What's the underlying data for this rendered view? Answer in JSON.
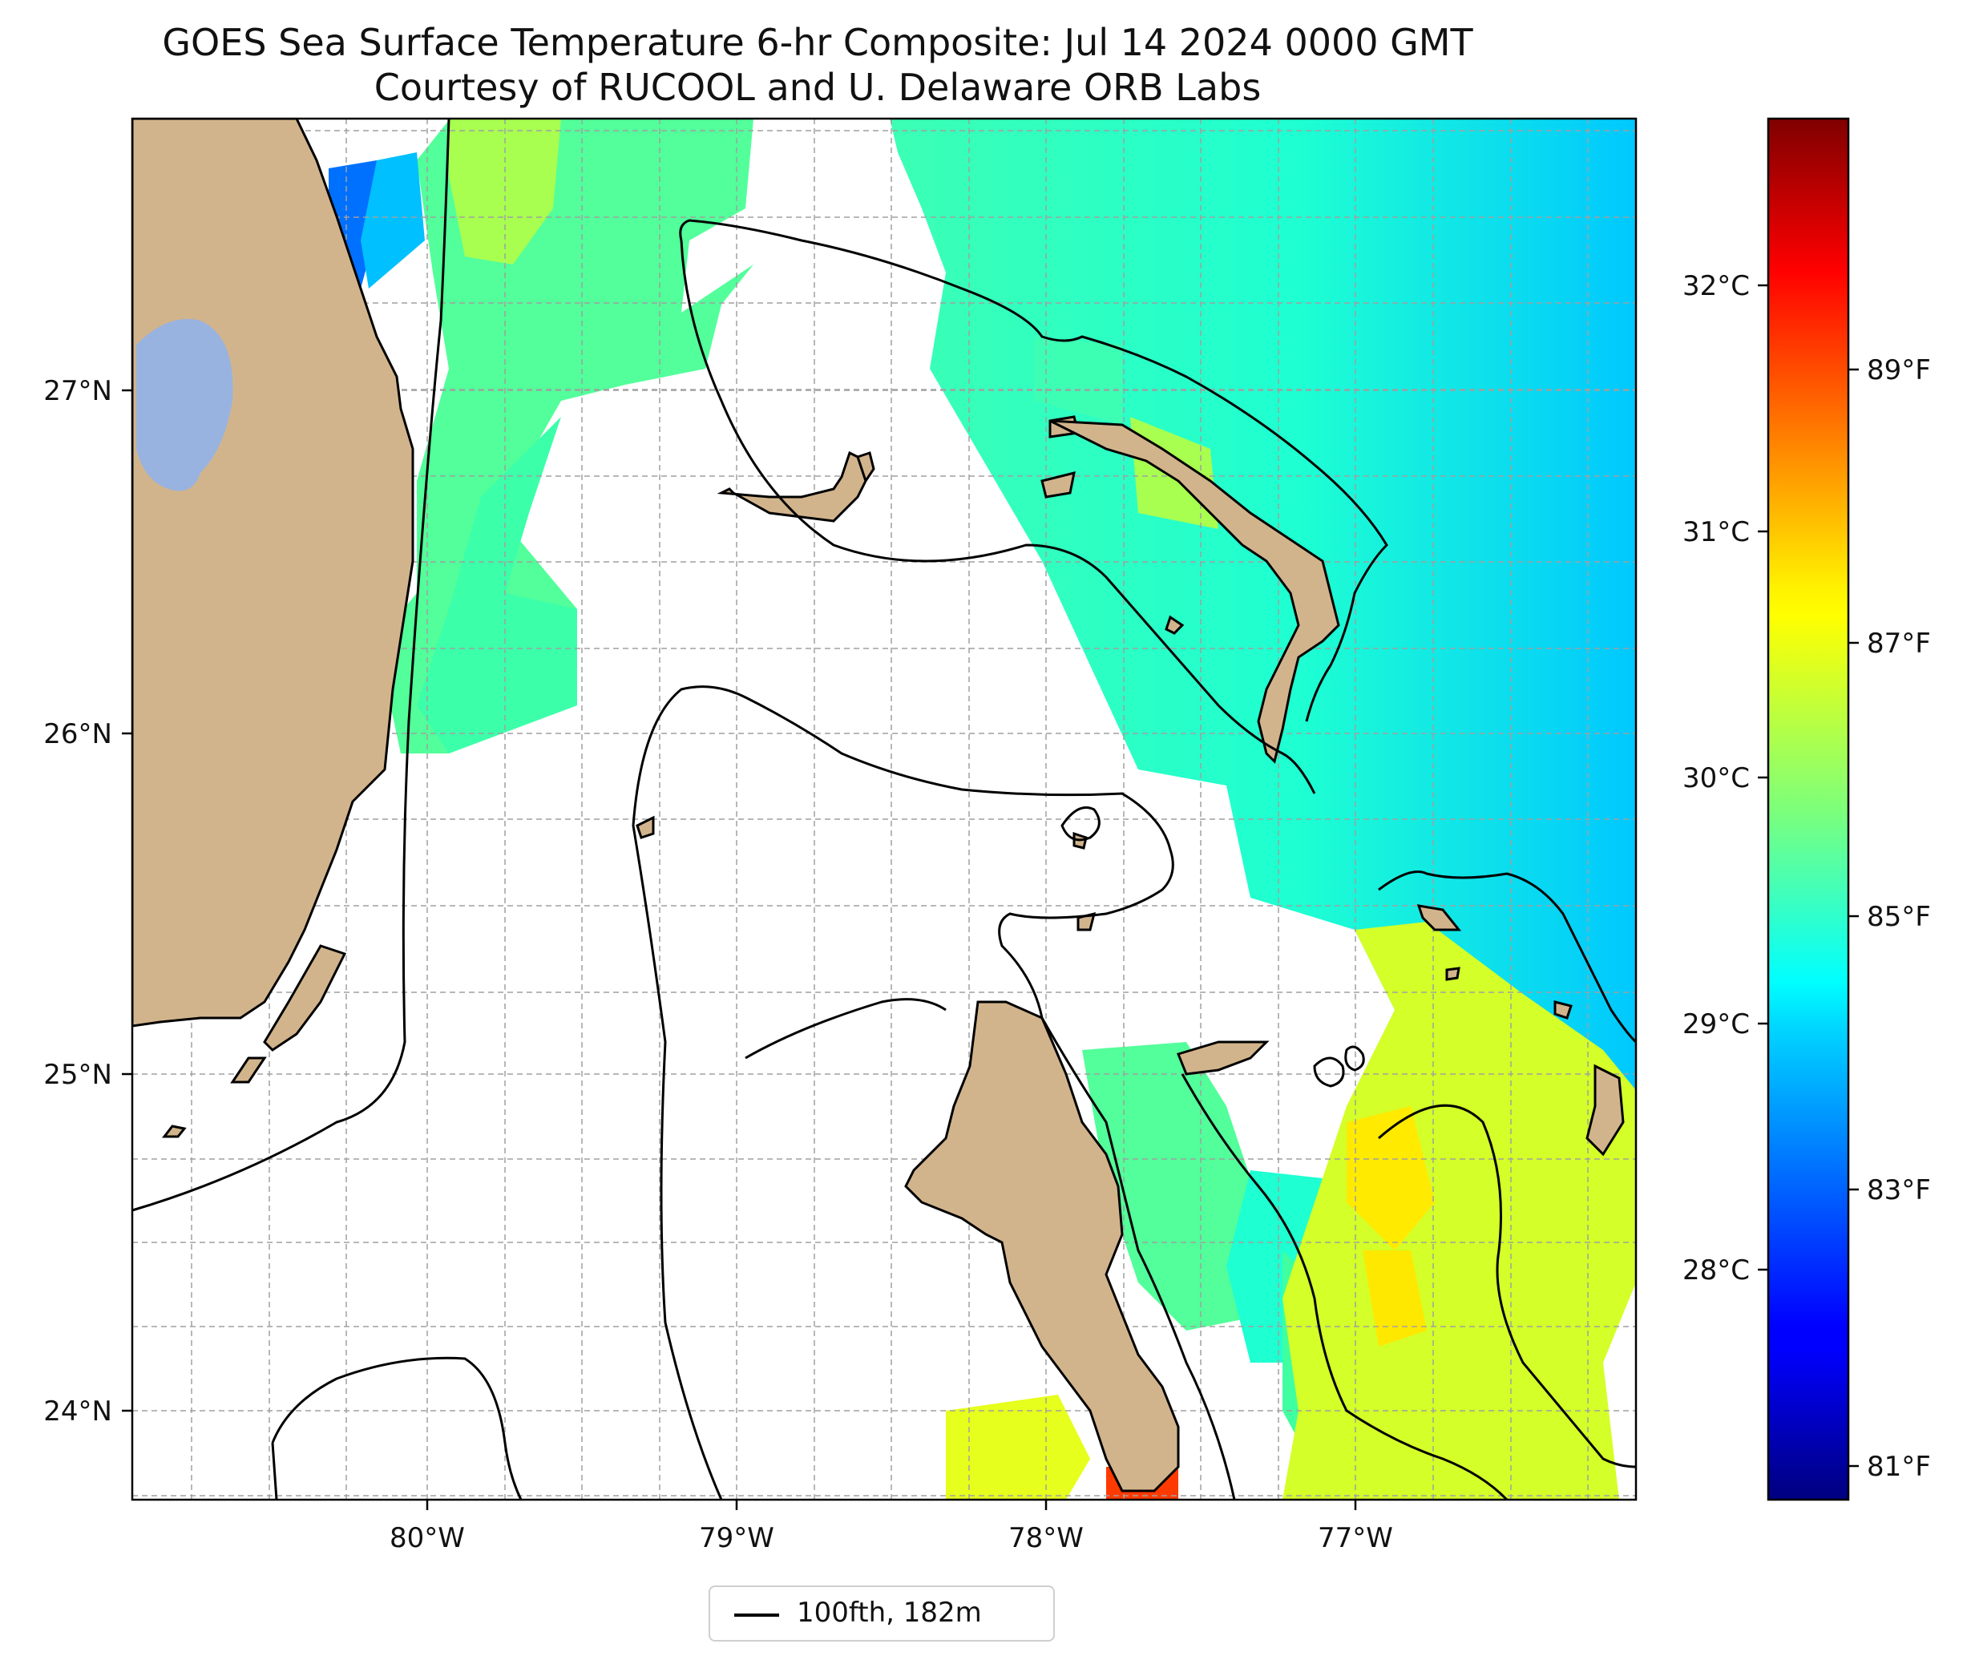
{
  "title_line1": "GOES Sea Surface Temperature 6-hr Composite: Jul 14 2024 0000 GMT",
  "title_line2": "Courtesy of RUCOOL and U. Delaware ORB Labs",
  "map": {
    "lon_range": [
      -80.95,
      -76.1
    ],
    "lat_range": [
      23.75,
      27.78
    ],
    "lon_ticks": [
      "80°W",
      "79°W",
      "78°W",
      "77°W"
    ],
    "lat_ticks": [
      "27°N",
      "26°N",
      "25°N",
      "24°N"
    ],
    "gridlines": true,
    "land_color": "#d2b48c",
    "lake_color": "#98b3e0"
  },
  "colorbar": {
    "colormap": "jet",
    "celsius_ticks": [
      "32°C",
      "31°C",
      "30°C",
      "29°C",
      "28°C"
    ],
    "fahrenheit_ticks": [
      "89°F",
      "87°F",
      "85°F",
      "83°F",
      "81°F"
    ]
  },
  "legend": {
    "label": "100fth, 182m",
    "line_color": "#000000"
  }
}
